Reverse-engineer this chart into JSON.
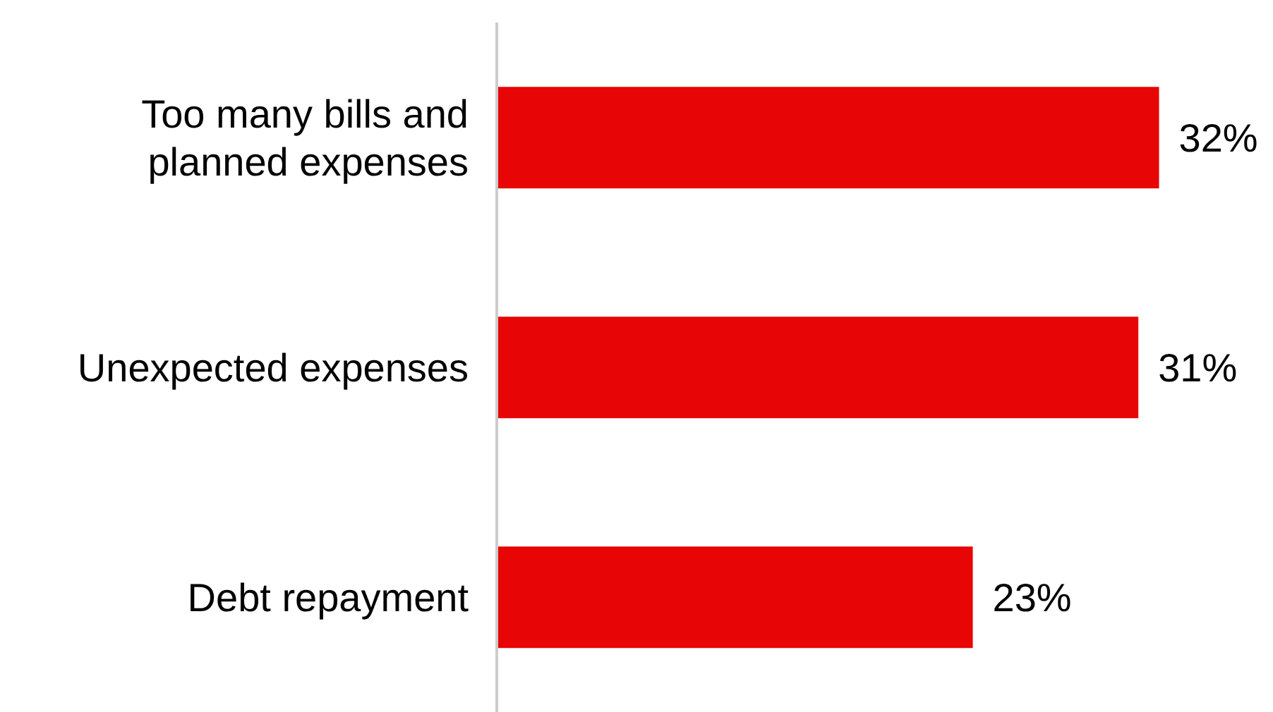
{
  "chart_data": {
    "type": "bar",
    "orientation": "horizontal",
    "categories": [
      "Too many bills and planned expenses",
      "Unexpected expenses",
      "Debt repayment"
    ],
    "values": [
      32,
      31,
      23
    ],
    "value_labels": [
      "32%",
      "31%",
      "23%"
    ],
    "color": "#e80505",
    "tick_labels": "y"
  }
}
